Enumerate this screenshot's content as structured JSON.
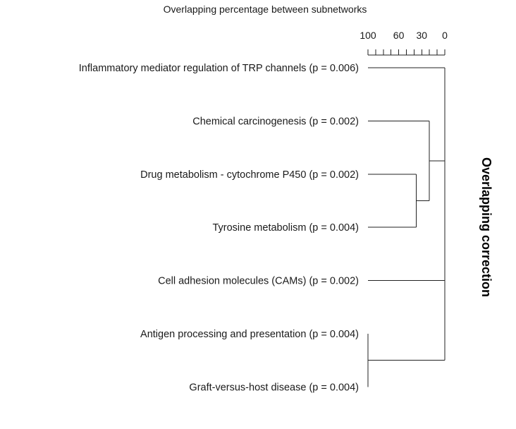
{
  "chart_data": {
    "type": "dendrogram",
    "title": "Overlapping percentage between subnetworks",
    "side_label": "Overlapping correction",
    "axis": {
      "ticks": [
        "100",
        "60",
        "30",
        "0"
      ],
      "tick_values": [
        100,
        60,
        30,
        0
      ],
      "range": [
        100,
        0
      ],
      "minor_step": 10
    },
    "leaves": [
      "Inflammatory mediator regulation of TRP channels (p = 0.006)",
      "Chemical carcinogenesis (p = 0.002)",
      "Drug metabolism - cytochrome P450 (p = 0.002)",
      "Tyrosine metabolism (p = 0.004)",
      "Cell adhesion molecules (CAMs) (p = 0.002)",
      "Antigen processing and presentation (p = 0.004)",
      "Graft-versus-host disease (p = 0.004)"
    ],
    "merges": [
      {
        "left": 5,
        "right": 6,
        "height": 100
      },
      {
        "left": 2,
        "right": 3,
        "height": 37
      },
      {
        "left": 1,
        "right": "m1",
        "height": 20
      },
      {
        "left": 0,
        "right": "m2",
        "height": 0
      },
      {
        "left": 4,
        "right": "m3",
        "height": 0
      },
      {
        "left": "m0",
        "right": "m4",
        "height": 0
      }
    ]
  }
}
